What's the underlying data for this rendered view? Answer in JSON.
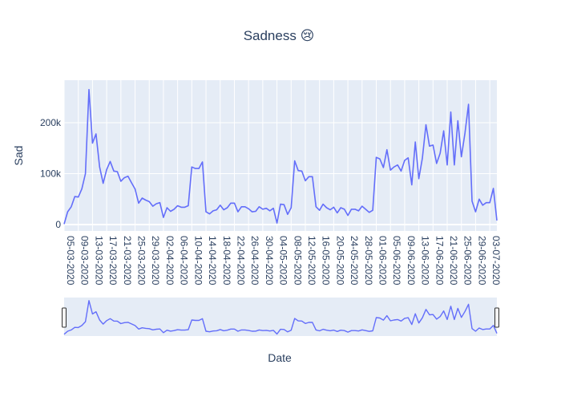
{
  "chart_data": {
    "type": "line",
    "title": "Sadness 😢",
    "xlabel": "Date",
    "ylabel": "Sad",
    "ylim": [
      0,
      270000
    ],
    "yticks": [
      0,
      100000,
      200000
    ],
    "ytick_labels": [
      "0",
      "100k",
      "200k"
    ],
    "xtick_labels": [
      "05-03-2020",
      "09-03-2020",
      "13-03-2020",
      "17-03-2020",
      "21-03-2020",
      "25-03-2020",
      "29-03-2020",
      "02-04-2020",
      "06-04-2020",
      "10-04-2020",
      "14-04-2020",
      "18-04-2020",
      "22-04-2020",
      "26-04-2020",
      "30-04-2020",
      "04-05-2020",
      "08-05-2020",
      "12-05-2020",
      "16-05-2020",
      "20-05-2020",
      "24-05-2020",
      "28-05-2020",
      "01-06-2020",
      "05-06-2020",
      "09-06-2020",
      "13-06-2020",
      "17-06-2020",
      "21-06-2020",
      "25-06-2020",
      "29-06-2020",
      "03-07-2020"
    ],
    "x_start": "05-03-2020",
    "x_end": "06-07-2020",
    "rangeslider": true,
    "series": [
      {
        "color": "#636efa",
        "values": [
          1000,
          25000,
          35000,
          55000,
          54000,
          70000,
          100000,
          265000,
          160000,
          178000,
          113000,
          81000,
          108000,
          124000,
          105000,
          104000,
          85000,
          92000,
          95000,
          82000,
          70000,
          42000,
          52000,
          48000,
          45000,
          36000,
          41000,
          43000,
          14000,
          33000,
          26000,
          30000,
          37000,
          34000,
          34000,
          37000,
          113000,
          110000,
          110000,
          123000,
          25000,
          21000,
          27000,
          29000,
          38000,
          29000,
          33000,
          42000,
          42000,
          25000,
          35000,
          35000,
          31000,
          25000,
          26000,
          35000,
          30000,
          32000,
          27000,
          32000,
          3000,
          40000,
          39000,
          20000,
          33000,
          125000,
          106000,
          105000,
          86000,
          94000,
          94000,
          35000,
          28000,
          40000,
          33000,
          29000,
          34000,
          23000,
          33000,
          30000,
          18000,
          30000,
          30000,
          27000,
          36000,
          30000,
          24000,
          28000,
          132000,
          129000,
          112000,
          147000,
          107000,
          113000,
          117000,
          105000,
          126000,
          131000,
          78000,
          162000,
          90000,
          130000,
          196000,
          154000,
          156000,
          120000,
          140000,
          184000,
          117000,
          221000,
          117000,
          204000,
          133000,
          180000,
          236000,
          46000,
          25000,
          50000,
          38000,
          43000,
          43000,
          71000,
          8000
        ]
      }
    ]
  }
}
